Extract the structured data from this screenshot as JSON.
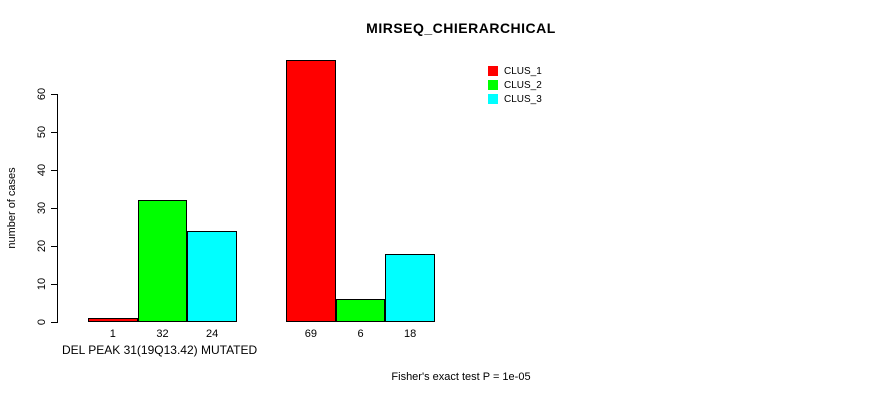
{
  "chart_data": {
    "type": "bar",
    "title": "MIRSEQ_CHIERARCHICAL",
    "ylabel": "number of cases",
    "xlabel": "DEL PEAK 31(19Q13.42) MUTATED",
    "footnote": "Fisher's exact test P = 1e-05",
    "series": [
      {
        "name": "CLUS_1",
        "color": "#FF0000",
        "values": [
          1,
          69
        ]
      },
      {
        "name": "CLUS_2",
        "color": "#00FF00",
        "values": [
          32,
          6
        ]
      },
      {
        "name": "CLUS_3",
        "color": "#00FFFF",
        "values": [
          24,
          18
        ]
      }
    ],
    "bar_value_labels": [
      [
        "1",
        "32",
        "24"
      ],
      [
        "69",
        "6",
        "18"
      ]
    ],
    "yticks": [
      0,
      10,
      20,
      30,
      40,
      50,
      60
    ],
    "ylim": [
      0,
      69
    ],
    "grid": false,
    "legend_position": "top-right",
    "bar_border_color": "#000000",
    "text_color": "#000000",
    "background_color": "#FFFFFF"
  }
}
